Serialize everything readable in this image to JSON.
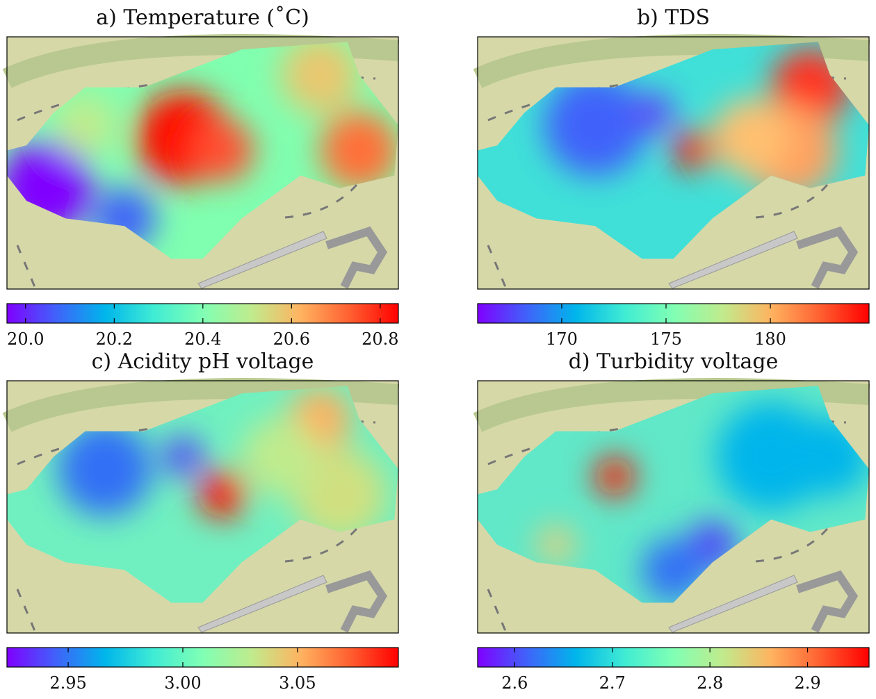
{
  "chart_data": [
    {
      "type": "heatmap",
      "title": "a) Temperature (˚C)",
      "colormap": "rainbow",
      "clim": [
        19.958,
        20.841
      ],
      "cticks": [
        {
          "value": 20,
          "label": "20.0"
        },
        20.2,
        20.4,
        20.6,
        20.8
      ]
    },
    {
      "type": "heatmap",
      "title": "b) TDS",
      "colormap": "rainbow",
      "clim": [
        165.97,
        184.73
      ],
      "cticks": [
        170,
        175,
        180
      ]
    },
    {
      "type": "heatmap",
      "title": "c) Acidity pH voltage",
      "colormap": "rainbow",
      "clim": [
        2.9233,
        3.094
      ],
      "cticks": [
        2.95,
        {
          "value": 3,
          "label": "3.00"
        },
        3.05
      ]
    },
    {
      "type": "heatmap",
      "title": "d) Turbidity voltage",
      "colormap": "rainbow",
      "clim": [
        2.562,
        2.963
      ],
      "cticks": [
        2.6,
        2.7,
        2.8,
        2.9
      ]
    }
  ]
}
